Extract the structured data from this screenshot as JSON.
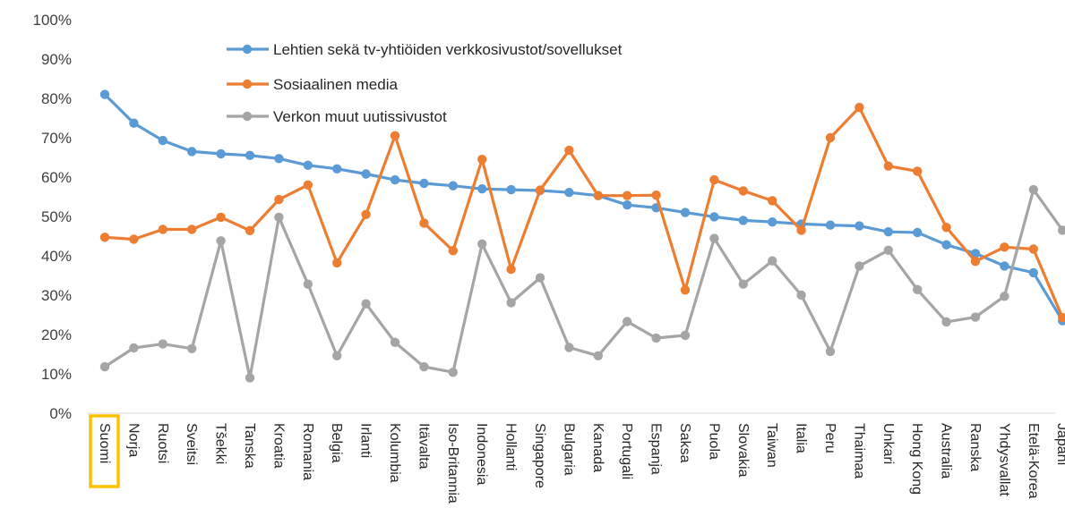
{
  "chart_data": {
    "type": "line",
    "title": "",
    "xlabel": "",
    "ylabel": "",
    "ylim": [
      0,
      100
    ],
    "yticks": [
      "0%",
      "10%",
      "20%",
      "30%",
      "40%",
      "50%",
      "60%",
      "70%",
      "80%",
      "90%",
      "100%"
    ],
    "grid": false,
    "legend_position": "top-left",
    "highlighted_category": "Suomi",
    "highlight_color": "#FFC000",
    "categories": [
      "Suomi",
      "Norja",
      "Ruotsi",
      "Sveitsi",
      "Tšekki",
      "Tanska",
      "Kroatia",
      "Romania",
      "Belgia",
      "Irlanti",
      "Kolumbia",
      "Itävalta",
      "Iso-Britannia",
      "Indonesia",
      "Hollanti",
      "Singapore",
      "Bulgaria",
      "Kanada",
      "Portugali",
      "Espanja",
      "Saksa",
      "Puola",
      "Slovakia",
      "Taiwan",
      "Italia",
      "Peru",
      "Thaimaa",
      "Unkari",
      "Hong Kong",
      "Australia",
      "Ranska",
      "Yhdysvallat",
      "Etelä-Korea",
      "Japani"
    ],
    "series": [
      {
        "name": "Lehtien sekä tv-yhtiöiden verkkosivustot/sovellukset",
        "color": "#5B9BD5",
        "values": [
          81,
          73.7,
          69.3,
          66.5,
          65.9,
          65.5,
          64.7,
          63,
          62.1,
          60.8,
          59.3,
          58.4,
          57.8,
          57,
          56.8,
          56.6,
          56.1,
          55.3,
          52.9,
          52.2,
          51,
          49.9,
          49,
          48.6,
          48.1,
          47.8,
          47.6,
          46.1,
          45.9,
          42.8,
          40.6,
          37.4,
          35.7,
          23.5
        ]
      },
      {
        "name": "Sosiaalinen media",
        "color": "#ED7D31",
        "values": [
          44.7,
          44.2,
          46.7,
          46.7,
          49.8,
          46.4,
          54.3,
          58,
          38.2,
          50.5,
          70.5,
          48.3,
          41.3,
          64.5,
          36.6,
          56.7,
          66.8,
          55.3,
          55.3,
          55.4,
          31.3,
          59.3,
          56.5,
          54,
          46.5,
          70,
          77.7,
          62.8,
          61.5,
          47.2,
          38.6,
          42.2,
          41.7,
          24.3
        ]
      },
      {
        "name": "Verkon muut uutissivustot",
        "color": "#A5A5A5",
        "values": [
          11.8,
          16.6,
          17.6,
          16.4,
          43.8,
          9,
          49.8,
          32.8,
          14.6,
          27.8,
          18,
          11.8,
          10.4,
          43,
          28.1,
          34.4,
          16.7,
          14.6,
          23.3,
          19.1,
          19.8,
          44.4,
          32.8,
          38.7,
          30,
          15.7,
          37.4,
          41.4,
          31.4,
          23.2,
          24.4,
          29.7,
          56.8,
          46.5
        ]
      }
    ]
  }
}
